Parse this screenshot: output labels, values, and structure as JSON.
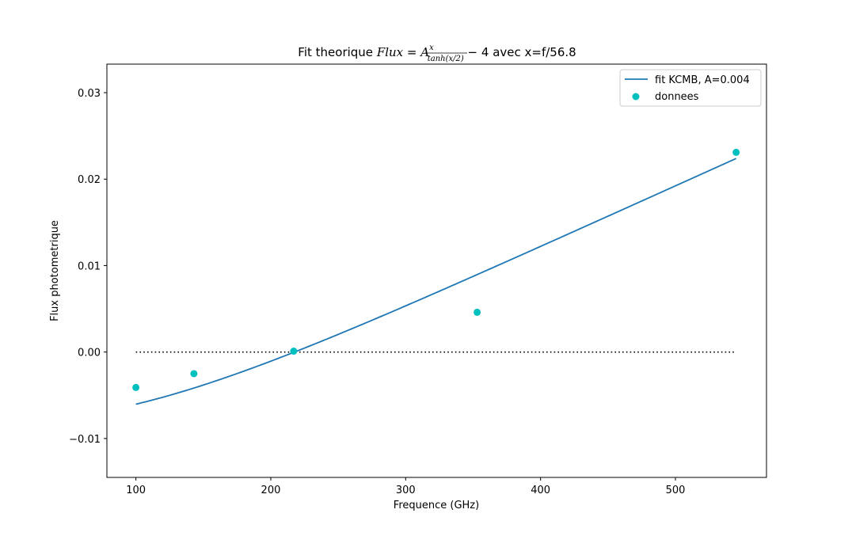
{
  "chart_data": {
    "type": "line",
    "title": {
      "prefix": "Fit theorique ",
      "math_lhs": "Flux",
      "math_eq": " = ",
      "math_A": "A",
      "math_num": "x",
      "math_den": "tanh(x/2)",
      "math_tail": " − 4",
      "suffix": " avec x=f/56.8"
    },
    "xlabel": "Frequence (GHz)",
    "ylabel": "Flux photometrique",
    "xlim": [
      78.5,
      567.5
    ],
    "ylim": [
      -0.0145,
      0.0333
    ],
    "x_ticks": [
      100,
      200,
      300,
      400,
      500
    ],
    "x_tick_labels": [
      "100",
      "200",
      "300",
      "400",
      "500"
    ],
    "y_ticks": [
      -0.01,
      0.0,
      0.01,
      0.02,
      0.03
    ],
    "y_tick_labels": [
      "−0.01",
      "0.00",
      "0.01",
      "0.02",
      "0.03"
    ],
    "grid": false,
    "legend_position": "top-right",
    "series": [
      {
        "name": "fit KCMB, A=0.004",
        "kind": "line",
        "color": "#1f77b4",
        "model": {
          "A": 0.004,
          "x_scale": 56.8,
          "offset": -4
        },
        "x_range": [
          100,
          545
        ]
      },
      {
        "name": "donnees",
        "kind": "scatter",
        "color": "#00bfbf",
        "x": [
          100,
          143,
          217,
          353,
          545
        ],
        "y": [
          -0.0041,
          -0.0025,
          0.0001,
          0.0046,
          0.0231
        ]
      },
      {
        "kind": "reference-line",
        "style": "dotted",
        "color": "#000000",
        "x": [
          100,
          545
        ],
        "y": [
          0.0,
          0.0
        ]
      }
    ]
  }
}
